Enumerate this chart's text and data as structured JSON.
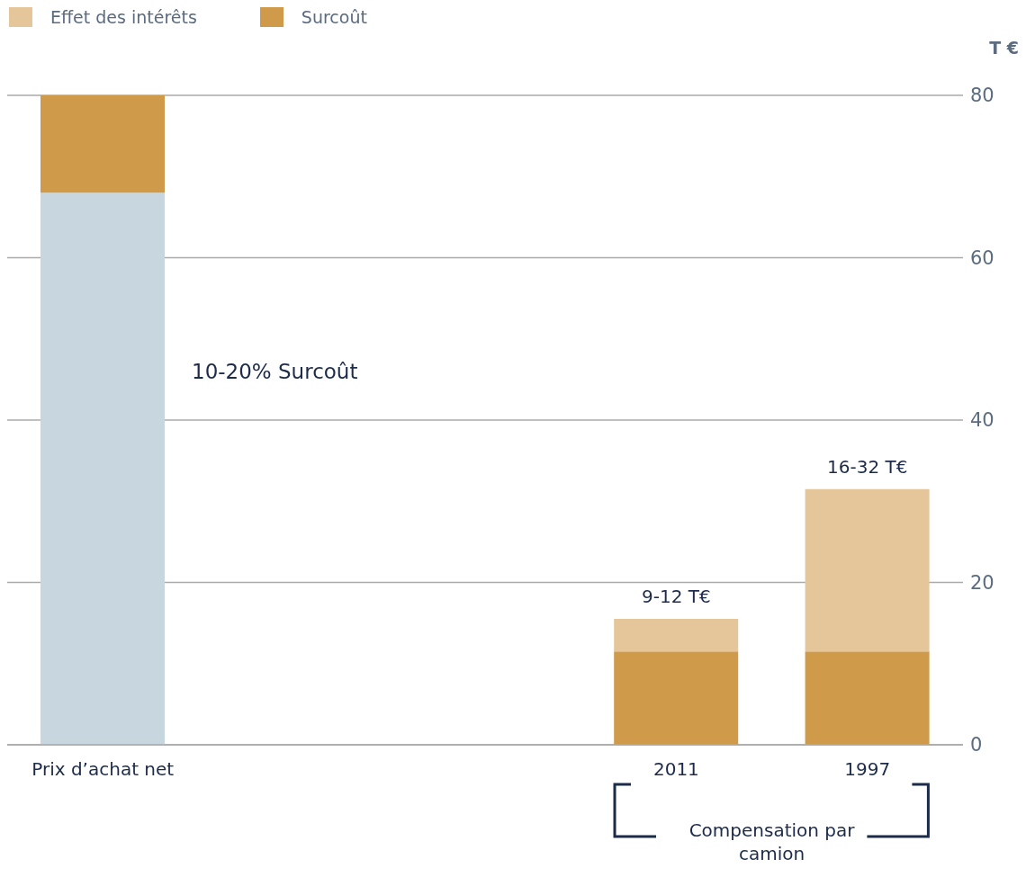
{
  "chart_data": {
    "type": "bar",
    "stacked": true,
    "categories": [
      "Prix d’achat net",
      null,
      null,
      "2011",
      "1997"
    ],
    "series": [
      {
        "color": "#c8d6e0",
        "values": [
          68,
          null,
          null,
          0,
          0
        ]
      },
      {
        "name": "Surcoût",
        "color": "#cf9a4a",
        "values": [
          12,
          null,
          null,
          11.5,
          11.5
        ]
      },
      {
        "name": "Effet des intérêts",
        "color": "#e5c69a",
        "values": [
          0,
          null,
          null,
          4,
          20
        ]
      }
    ],
    "ylabel": "T €",
    "ylim": [
      0,
      80
    ],
    "yticks": [
      0,
      20,
      40,
      60,
      80
    ],
    "grid": "y",
    "legend": "top left",
    "annotations": [
      "10-20% Surcoût",
      {
        "text": "9-12 T€",
        "x": "2011",
        "y": 15.5
      },
      {
        "text": "16-32 T€",
        "x": "1997",
        "y": 31.5
      },
      "Compensation par camion"
    ]
  }
}
